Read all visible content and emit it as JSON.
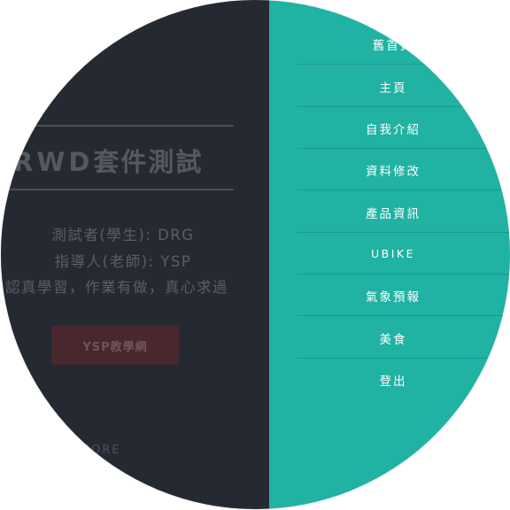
{
  "hero": {
    "title_latin": "RWD",
    "title_cjk": "套件測試",
    "tester": "測試者(學生): DRG",
    "advisor": "指導人(老師): YSP",
    "motto": "認真學習，作業有做，真心求過",
    "cta_label": "YSP教學網",
    "learn_more": "RN MORE"
  },
  "nav": {
    "items": [
      {
        "label": "舊首頁"
      },
      {
        "label": "主頁"
      },
      {
        "label": "自我介紹"
      },
      {
        "label": "資料修改"
      },
      {
        "label": "產品資訊"
      },
      {
        "label": "UBIKE"
      },
      {
        "label": "氣象預報"
      },
      {
        "label": "美食"
      },
      {
        "label": "登出"
      }
    ]
  },
  "colors": {
    "dark_panel": "#2b313a",
    "teal_panel": "#20b2a3",
    "cta": "#6b2e31"
  }
}
